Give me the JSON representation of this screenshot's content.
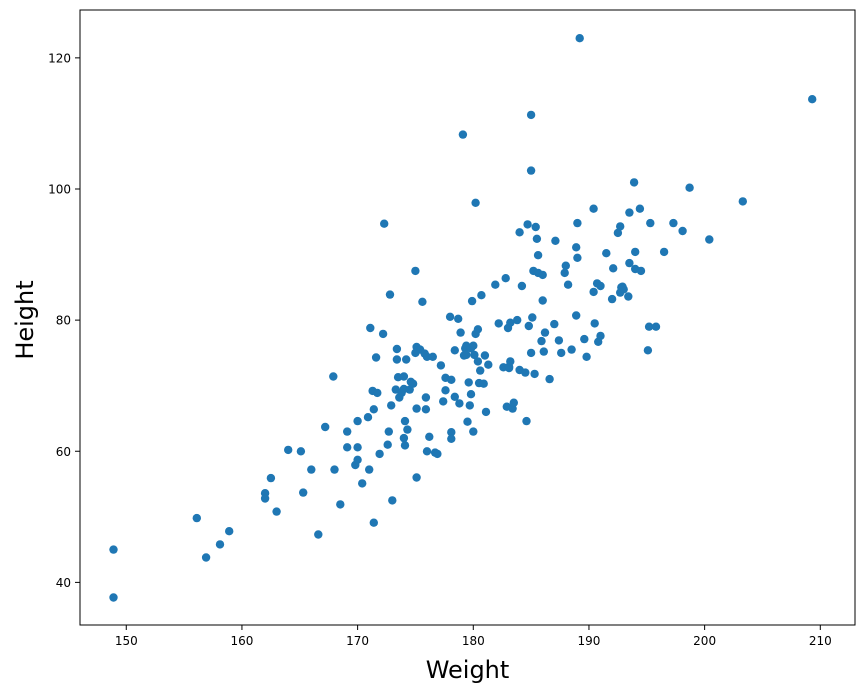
{
  "chart_data": {
    "type": "scatter",
    "xlabel": "Weight",
    "ylabel": "Height",
    "xlim": [
      146,
      213
    ],
    "ylim": [
      33.5,
      127.3
    ],
    "xticks": [
      150,
      160,
      170,
      180,
      190,
      200,
      210
    ],
    "yticks": [
      40,
      60,
      80,
      100,
      120
    ],
    "grid": false,
    "marker_color": "#1f77b4",
    "series": [
      {
        "points": [
          [
            148.9,
            45
          ],
          [
            148.9,
            37.7
          ],
          [
            156.1,
            49.8
          ],
          [
            156.9,
            43.8
          ],
          [
            158.1,
            45.8
          ],
          [
            158.9,
            47.8
          ],
          [
            162.0,
            53.6
          ],
          [
            162.0,
            52.8
          ],
          [
            162.5,
            55.9
          ],
          [
            163.0,
            50.8
          ],
          [
            164.0,
            60.2
          ],
          [
            165.1,
            60.0
          ],
          [
            165.3,
            53.7
          ],
          [
            166.0,
            57.2
          ],
          [
            166.6,
            47.3
          ],
          [
            167.2,
            63.7
          ],
          [
            167.9,
            71.4
          ],
          [
            168.0,
            57.2
          ],
          [
            168.5,
            51.9
          ],
          [
            169.1,
            63.0
          ],
          [
            169.1,
            60.6
          ],
          [
            169.8,
            57.9
          ],
          [
            170.0,
            58.7
          ],
          [
            170.0,
            60.6
          ],
          [
            170.0,
            64.6
          ],
          [
            170.4,
            55.1
          ],
          [
            170.9,
            65.2
          ],
          [
            171.0,
            57.2
          ],
          [
            171.1,
            78.8
          ],
          [
            171.3,
            69.2
          ],
          [
            171.4,
            49.1
          ],
          [
            171.4,
            66.4
          ],
          [
            171.6,
            74.3
          ],
          [
            171.7,
            68.9
          ],
          [
            171.9,
            59.6
          ],
          [
            172.2,
            77.9
          ],
          [
            172.3,
            94.7
          ],
          [
            172.6,
            61.0
          ],
          [
            172.7,
            63.0
          ],
          [
            172.8,
            83.9
          ],
          [
            172.9,
            67.0
          ],
          [
            173.0,
            52.5
          ],
          [
            173.3,
            69.4
          ],
          [
            173.4,
            75.6
          ],
          [
            173.4,
            74.0
          ],
          [
            173.5,
            71.3
          ],
          [
            173.6,
            68.2
          ],
          [
            173.8,
            68.9
          ],
          [
            174.0,
            62.0
          ],
          [
            174.0,
            69.5
          ],
          [
            174.0,
            71.4
          ],
          [
            174.1,
            60.9
          ],
          [
            174.1,
            64.6
          ],
          [
            174.2,
            74.0
          ],
          [
            174.3,
            63.3
          ],
          [
            174.5,
            69.4
          ],
          [
            174.6,
            70.6
          ],
          [
            174.8,
            70.3
          ],
          [
            175.0,
            75.0
          ],
          [
            175.0,
            87.5
          ],
          [
            175.1,
            75.9
          ],
          [
            175.1,
            66.5
          ],
          [
            175.1,
            56.0
          ],
          [
            175.4,
            75.5
          ],
          [
            175.6,
            82.8
          ],
          [
            175.8,
            74.9
          ],
          [
            175.9,
            68.2
          ],
          [
            175.9,
            66.4
          ],
          [
            176.0,
            74.4
          ],
          [
            176.0,
            60.0
          ],
          [
            176.2,
            62.2
          ],
          [
            176.5,
            74.4
          ],
          [
            176.7,
            59.8
          ],
          [
            176.9,
            59.6
          ],
          [
            177.2,
            73.1
          ],
          [
            177.4,
            67.6
          ],
          [
            177.6,
            71.2
          ],
          [
            177.6,
            69.3
          ],
          [
            178.0,
            80.5
          ],
          [
            178.1,
            70.9
          ],
          [
            178.1,
            62.9
          ],
          [
            178.1,
            61.9
          ],
          [
            178.4,
            68.3
          ],
          [
            178.4,
            75.4
          ],
          [
            178.7,
            80.2
          ],
          [
            178.8,
            67.3
          ],
          [
            178.9,
            78.1
          ],
          [
            179.1,
            108.3
          ],
          [
            179.2,
            74.6
          ],
          [
            179.3,
            75.7
          ],
          [
            179.4,
            76.1
          ],
          [
            179.4,
            74.7
          ],
          [
            179.5,
            64.5
          ],
          [
            179.6,
            70.5
          ],
          [
            179.7,
            67.0
          ],
          [
            179.8,
            68.7
          ],
          [
            179.8,
            75.7
          ],
          [
            179.9,
            82.9
          ],
          [
            180.0,
            63.0
          ],
          [
            180.0,
            76.1
          ],
          [
            180.1,
            74.7
          ],
          [
            180.2,
            97.9
          ],
          [
            180.2,
            77.9
          ],
          [
            180.4,
            78.6
          ],
          [
            180.4,
            73.7
          ],
          [
            180.5,
            70.4
          ],
          [
            180.6,
            72.3
          ],
          [
            180.7,
            83.8
          ],
          [
            180.9,
            70.3
          ],
          [
            181.0,
            74.6
          ],
          [
            181.1,
            66.0
          ],
          [
            181.3,
            73.2
          ],
          [
            181.9,
            85.4
          ],
          [
            182.2,
            79.5
          ],
          [
            182.6,
            72.8
          ],
          [
            182.8,
            86.4
          ],
          [
            182.9,
            66.8
          ],
          [
            183.0,
            78.8
          ],
          [
            183.1,
            72.7
          ],
          [
            183.1,
            72.9
          ],
          [
            183.2,
            79.6
          ],
          [
            183.2,
            73.7
          ],
          [
            183.4,
            66.5
          ],
          [
            183.5,
            67.4
          ],
          [
            183.8,
            80.0
          ],
          [
            184.0,
            93.4
          ],
          [
            184.0,
            72.4
          ],
          [
            184.2,
            85.2
          ],
          [
            184.5,
            72.0
          ],
          [
            184.6,
            64.6
          ],
          [
            184.7,
            94.6
          ],
          [
            184.8,
            79.1
          ],
          [
            185.0,
            111.3
          ],
          [
            185.0,
            102.8
          ],
          [
            185.0,
            75.0
          ],
          [
            185.1,
            80.4
          ],
          [
            185.2,
            87.5
          ],
          [
            185.3,
            71.8
          ],
          [
            185.4,
            94.2
          ],
          [
            185.5,
            92.4
          ],
          [
            185.6,
            87.2
          ],
          [
            185.6,
            89.9
          ],
          [
            185.9,
            76.8
          ],
          [
            186.0,
            83.0
          ],
          [
            186.0,
            86.9
          ],
          [
            186.1,
            75.2
          ],
          [
            186.2,
            78.1
          ],
          [
            186.6,
            71.0
          ],
          [
            187.0,
            79.4
          ],
          [
            187.1,
            92.1
          ],
          [
            187.4,
            76.9
          ],
          [
            187.6,
            75.0
          ],
          [
            187.9,
            87.2
          ],
          [
            188.0,
            88.3
          ],
          [
            188.2,
            85.4
          ],
          [
            188.5,
            75.5
          ],
          [
            188.9,
            80.7
          ],
          [
            188.9,
            91.1
          ],
          [
            189.0,
            94.8
          ],
          [
            189.0,
            89.5
          ],
          [
            189.2,
            123.0
          ],
          [
            189.6,
            77.1
          ],
          [
            189.8,
            74.4
          ],
          [
            190.4,
            84.3
          ],
          [
            190.4,
            97.0
          ],
          [
            190.5,
            79.5
          ],
          [
            190.7,
            85.6
          ],
          [
            190.8,
            76.7
          ],
          [
            191.0,
            77.6
          ],
          [
            191.0,
            85.2
          ],
          [
            191.5,
            90.2
          ],
          [
            192.0,
            83.2
          ],
          [
            192.1,
            87.9
          ],
          [
            192.5,
            93.3
          ],
          [
            192.7,
            94.3
          ],
          [
            192.7,
            84.2
          ],
          [
            192.8,
            85.0
          ],
          [
            192.9,
            85.1
          ],
          [
            193.0,
            84.7
          ],
          [
            193.4,
            83.6
          ],
          [
            193.5,
            88.7
          ],
          [
            193.5,
            96.4
          ],
          [
            193.9,
            101.0
          ],
          [
            194.0,
            90.4
          ],
          [
            194.0,
            87.8
          ],
          [
            194.4,
            97.0
          ],
          [
            194.5,
            87.5
          ],
          [
            195.1,
            75.4
          ],
          [
            195.2,
            79.0
          ],
          [
            195.3,
            94.8
          ],
          [
            195.8,
            79.0
          ],
          [
            196.5,
            90.4
          ],
          [
            197.3,
            94.8
          ],
          [
            198.1,
            93.6
          ],
          [
            198.7,
            100.2
          ],
          [
            200.4,
            92.3
          ],
          [
            203.3,
            98.1
          ],
          [
            209.3,
            113.7
          ]
        ]
      }
    ]
  }
}
